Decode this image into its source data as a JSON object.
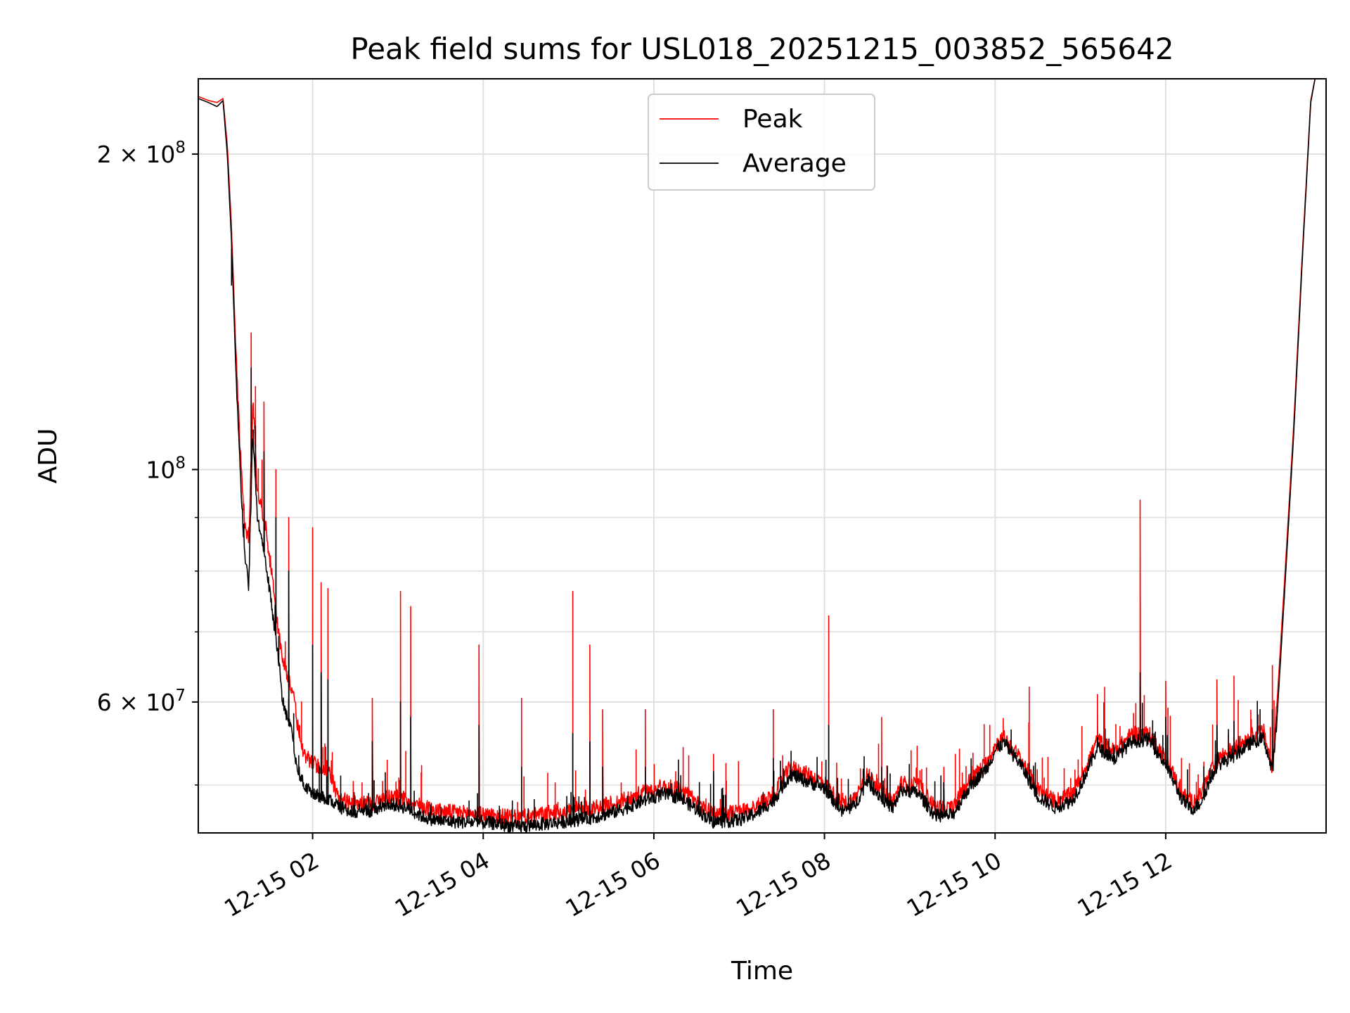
{
  "chart_data": {
    "type": "line",
    "title": "Peak field sums for USL018_20251215_003852_565642",
    "xlabel": "Time",
    "ylabel": "ADU",
    "y_scale": "log",
    "x_unit": "hours on 2025-12-15",
    "xlim": [
      0.66,
      13.88
    ],
    "ylim": [
      45000000,
      236000000
    ],
    "x_ticks": [
      {
        "value": 2,
        "label": "12-15 02"
      },
      {
        "value": 4,
        "label": "12-15 04"
      },
      {
        "value": 6,
        "label": "12-15 06"
      },
      {
        "value": 8,
        "label": "12-15 08"
      },
      {
        "value": 10,
        "label": "12-15 10"
      },
      {
        "value": 12,
        "label": "12-15 12"
      }
    ],
    "y_ticks": [
      {
        "value": 200000000,
        "mant": "2",
        "exp": "8"
      },
      {
        "value": 100000000,
        "mant": "",
        "exp": "8"
      },
      {
        "value": 60000000,
        "mant": "6",
        "exp": "7"
      }
    ],
    "y_minor_ticks": [
      50000000,
      70000000,
      80000000,
      90000000
    ],
    "grid": true,
    "legend_position": "top-center",
    "series": [
      {
        "name": "Peak",
        "color": "#ff0000",
        "baseline": [
          [
            0.66,
            227000000
          ],
          [
            0.78,
            225000000
          ],
          [
            0.88,
            224000000
          ],
          [
            0.95,
            226000000
          ],
          [
            1.0,
            204000000
          ],
          [
            1.05,
            170000000
          ],
          [
            1.1,
            130000000
          ],
          [
            1.15,
            105000000
          ],
          [
            1.2,
            90000000
          ],
          [
            1.25,
            85000000
          ],
          [
            1.3,
            117000000
          ],
          [
            1.35,
            95000000
          ],
          [
            1.4,
            92000000
          ],
          [
            1.45,
            88000000
          ],
          [
            1.5,
            82000000
          ],
          [
            1.55,
            76000000
          ],
          [
            1.6,
            70000000
          ],
          [
            1.65,
            66000000
          ],
          [
            1.7,
            64000000
          ],
          [
            1.75,
            62000000
          ],
          [
            1.8,
            59000000
          ],
          [
            1.85,
            55000000
          ],
          [
            1.9,
            53500000
          ],
          [
            1.95,
            53000000
          ],
          [
            2.0,
            52500000
          ],
          [
            2.1,
            52000000
          ],
          [
            2.2,
            51500000
          ],
          [
            2.3,
            48500000
          ],
          [
            2.5,
            48000000
          ],
          [
            2.7,
            48000000
          ],
          [
            2.9,
            48800000
          ],
          [
            3.1,
            48500000
          ],
          [
            3.3,
            47600000
          ],
          [
            3.5,
            47200000
          ],
          [
            3.8,
            47000000
          ],
          [
            4.1,
            46800000
          ],
          [
            4.4,
            46500000
          ],
          [
            4.7,
            46900000
          ],
          [
            5.0,
            47300000
          ],
          [
            5.3,
            47600000
          ],
          [
            5.6,
            48200000
          ],
          [
            5.9,
            49300000
          ],
          [
            6.1,
            49800000
          ],
          [
            6.3,
            49600000
          ],
          [
            6.5,
            48200000
          ],
          [
            6.7,
            47000000
          ],
          [
            7.0,
            47100000
          ],
          [
            7.2,
            47700000
          ],
          [
            7.4,
            49000000
          ],
          [
            7.6,
            52000000
          ],
          [
            7.8,
            51200000
          ],
          [
            8.0,
            50300000
          ],
          [
            8.2,
            47900000
          ],
          [
            8.35,
            48500000
          ],
          [
            8.5,
            51200000
          ],
          [
            8.65,
            49500000
          ],
          [
            8.8,
            48200000
          ],
          [
            8.9,
            50200000
          ],
          [
            9.1,
            50000000
          ],
          [
            9.3,
            47600000
          ],
          [
            9.5,
            47500000
          ],
          [
            9.7,
            50500000
          ],
          [
            9.9,
            52500000
          ],
          [
            10.0,
            54500000
          ],
          [
            10.1,
            55500000
          ],
          [
            10.3,
            53000000
          ],
          [
            10.5,
            49500000
          ],
          [
            10.7,
            48300000
          ],
          [
            10.9,
            49000000
          ],
          [
            11.0,
            50700000
          ],
          [
            11.2,
            55200000
          ],
          [
            11.4,
            53800000
          ],
          [
            11.6,
            55900000
          ],
          [
            11.8,
            56000000
          ],
          [
            12.0,
            53000000
          ],
          [
            12.2,
            49000000
          ],
          [
            12.3,
            48200000
          ],
          [
            12.4,
            48800000
          ],
          [
            12.6,
            53000000
          ],
          [
            12.8,
            54200000
          ],
          [
            13.0,
            55700000
          ],
          [
            13.15,
            56200000
          ],
          [
            13.25,
            52000000
          ],
          [
            13.3,
            59000000
          ],
          [
            13.4,
            80000000
          ],
          [
            13.5,
            110000000
          ],
          [
            13.6,
            160000000
          ],
          [
            13.7,
            225000000
          ],
          [
            13.75,
            236000000
          ]
        ],
        "spikes": [
          [
            1.05,
            163000000
          ],
          [
            1.28,
            135000000
          ],
          [
            1.33,
            120000000
          ],
          [
            1.43,
            116000000
          ],
          [
            1.57,
            100000000
          ],
          [
            1.72,
            90000000
          ],
          [
            2.0,
            88000000
          ],
          [
            2.1,
            78000000
          ],
          [
            2.18,
            77000000
          ],
          [
            2.7,
            60500000
          ],
          [
            3.03,
            76500000
          ],
          [
            3.15,
            74000000
          ],
          [
            3.95,
            68000000
          ],
          [
            4.45,
            60500000
          ],
          [
            5.05,
            76500000
          ],
          [
            5.25,
            68000000
          ],
          [
            5.4,
            59000000
          ],
          [
            5.9,
            59000000
          ],
          [
            6.7,
            53500000
          ],
          [
            7.4,
            59000000
          ],
          [
            8.05,
            72500000
          ],
          [
            8.67,
            58000000
          ],
          [
            9.4,
            52000000
          ],
          [
            10.4,
            62000000
          ],
          [
            11.2,
            61000000
          ],
          [
            11.7,
            93500000
          ],
          [
            12.0,
            62800000
          ],
          [
            12.6,
            63000000
          ],
          [
            12.8,
            63500000
          ],
          [
            13.25,
            65000000
          ]
        ]
      },
      {
        "name": "Average",
        "color": "#000000",
        "baseline": [
          [
            0.66,
            226000000
          ],
          [
            0.78,
            224000000
          ],
          [
            0.88,
            222000000
          ],
          [
            0.95,
            225000000
          ],
          [
            1.0,
            200000000
          ],
          [
            1.05,
            165000000
          ],
          [
            1.1,
            125000000
          ],
          [
            1.15,
            100000000
          ],
          [
            1.2,
            84000000
          ],
          [
            1.25,
            77000000
          ],
          [
            1.3,
            109000000
          ],
          [
            1.35,
            90000000
          ],
          [
            1.4,
            86000000
          ],
          [
            1.45,
            82000000
          ],
          [
            1.5,
            76000000
          ],
          [
            1.55,
            71000000
          ],
          [
            1.6,
            66000000
          ],
          [
            1.65,
            60000000
          ],
          [
            1.7,
            58000000
          ],
          [
            1.75,
            56500000
          ],
          [
            1.8,
            53000000
          ],
          [
            1.85,
            51000000
          ],
          [
            1.9,
            50000000
          ],
          [
            1.95,
            49500000
          ],
          [
            2.0,
            49000000
          ],
          [
            2.1,
            48800000
          ],
          [
            2.2,
            48500000
          ],
          [
            2.3,
            47600000
          ],
          [
            2.5,
            47200000
          ],
          [
            2.7,
            47300000
          ],
          [
            2.9,
            48000000
          ],
          [
            3.1,
            47600000
          ],
          [
            3.3,
            46600000
          ],
          [
            3.5,
            46200000
          ],
          [
            3.8,
            46100000
          ],
          [
            4.1,
            46000000
          ],
          [
            4.4,
            45600000
          ],
          [
            4.7,
            45900000
          ],
          [
            5.0,
            46200000
          ],
          [
            5.3,
            46600000
          ],
          [
            5.6,
            47300000
          ],
          [
            5.9,
            48400000
          ],
          [
            6.1,
            49000000
          ],
          [
            6.3,
            48700000
          ],
          [
            6.5,
            47400000
          ],
          [
            6.7,
            46100000
          ],
          [
            7.0,
            46300000
          ],
          [
            7.2,
            47000000
          ],
          [
            7.4,
            48300000
          ],
          [
            7.6,
            51200000
          ],
          [
            7.8,
            50400000
          ],
          [
            8.0,
            49700000
          ],
          [
            8.2,
            47200000
          ],
          [
            8.35,
            47700000
          ],
          [
            8.5,
            50500000
          ],
          [
            8.65,
            48800000
          ],
          [
            8.8,
            47500000
          ],
          [
            8.9,
            49500000
          ],
          [
            9.1,
            49100000
          ],
          [
            9.3,
            46700000
          ],
          [
            9.5,
            46800000
          ],
          [
            9.7,
            49800000
          ],
          [
            9.9,
            51900000
          ],
          [
            10.0,
            53900000
          ],
          [
            10.1,
            54900000
          ],
          [
            10.3,
            52300000
          ],
          [
            10.5,
            48800000
          ],
          [
            10.7,
            47600000
          ],
          [
            10.9,
            48300000
          ],
          [
            11.0,
            49900000
          ],
          [
            11.2,
            54300000
          ],
          [
            11.4,
            53000000
          ],
          [
            11.6,
            55000000
          ],
          [
            11.8,
            55300000
          ],
          [
            12.0,
            52300000
          ],
          [
            12.2,
            48300000
          ],
          [
            12.3,
            47400000
          ],
          [
            12.4,
            48000000
          ],
          [
            12.6,
            52200000
          ],
          [
            12.8,
            53300000
          ],
          [
            13.0,
            54900000
          ],
          [
            13.15,
            55400000
          ],
          [
            13.25,
            51400000
          ],
          [
            13.3,
            57000000
          ],
          [
            13.4,
            78000000
          ],
          [
            13.5,
            108000000
          ],
          [
            13.6,
            158000000
          ],
          [
            13.7,
            224000000
          ],
          [
            13.75,
            236000000
          ]
        ],
        "spikes": [
          [
            1.05,
            150000000
          ],
          [
            1.28,
            125000000
          ],
          [
            1.33,
            110000000
          ],
          [
            1.43,
            104000000
          ],
          [
            1.57,
            90000000
          ],
          [
            1.72,
            80000000
          ],
          [
            2.0,
            68000000
          ],
          [
            2.1,
            64000000
          ],
          [
            2.18,
            63000000
          ],
          [
            2.7,
            55000000
          ],
          [
            3.03,
            60000000
          ],
          [
            3.15,
            58000000
          ],
          [
            3.95,
            57000000
          ],
          [
            4.45,
            52000000
          ],
          [
            5.05,
            56000000
          ],
          [
            5.25,
            55000000
          ],
          [
            5.4,
            52000000
          ],
          [
            5.9,
            52000000
          ],
          [
            6.7,
            51500000
          ],
          [
            7.4,
            53000000
          ],
          [
            8.05,
            57000000
          ],
          [
            8.67,
            52000000
          ],
          [
            9.4,
            49500000
          ],
          [
            10.4,
            52500000
          ],
          [
            11.2,
            55500000
          ],
          [
            11.7,
            64000000
          ],
          [
            12.0,
            58000000
          ],
          [
            12.6,
            57000000
          ],
          [
            12.8,
            57500000
          ],
          [
            13.25,
            59000000
          ]
        ]
      }
    ]
  }
}
